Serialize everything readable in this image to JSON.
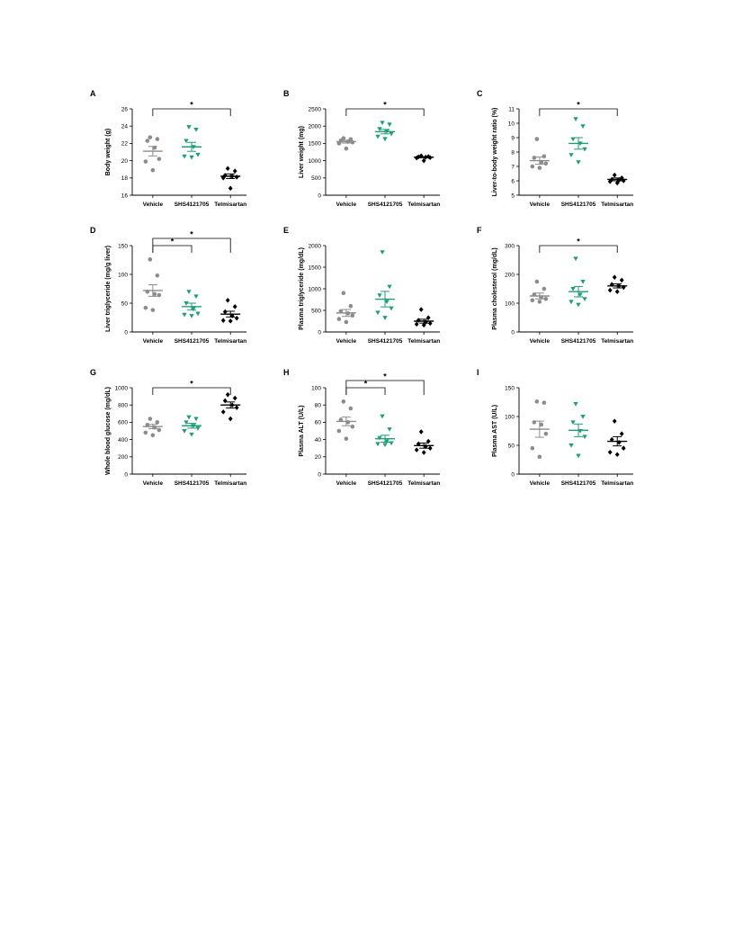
{
  "colors": {
    "Vehicle": "#8c8c8c",
    "SHS4121705": "#1f9e74",
    "Telmisartan": "#000000"
  },
  "chart_data": [
    {
      "panel": "A",
      "type": "scatter",
      "ylabel": "Body weight (g)",
      "ylim": [
        16,
        26
      ],
      "yticks": [
        16,
        18,
        20,
        22,
        24,
        26
      ],
      "categories": [
        "Vehicle",
        "SHS4121705",
        "Telmisartan"
      ],
      "series": [
        {
          "name": "Vehicle",
          "marker": "circle",
          "values": [
            22.7,
            22.5,
            22.3,
            21.5,
            20.2,
            19.9,
            18.9
          ],
          "mean": 21.1,
          "sem": 0.55
        },
        {
          "name": "SHS4121705",
          "marker": "triangle-down",
          "values": [
            23.9,
            23.6,
            22.3,
            21.6,
            20.7,
            20.5,
            20.4
          ],
          "mean": 21.6,
          "sem": 0.52
        },
        {
          "name": "Telmisartan",
          "marker": "diamond",
          "values": [
            19.1,
            18.8,
            18.3,
            18.2,
            18.1,
            18.0,
            16.8
          ],
          "mean": 18.2,
          "sem": 0.27
        }
      ],
      "sig": [
        {
          "from": "Vehicle",
          "to": "Telmisartan",
          "label": "*"
        }
      ]
    },
    {
      "panel": "B",
      "type": "scatter",
      "ylabel": "Liver weight (mg)",
      "ylim": [
        0,
        2500
      ],
      "yticks": [
        0,
        500,
        1000,
        1500,
        2000,
        2500
      ],
      "categories": [
        "Vehicle",
        "SHS4121705",
        "Telmisartan"
      ],
      "series": [
        {
          "name": "Vehicle",
          "marker": "circle",
          "values": [
            1650,
            1620,
            1580,
            1550,
            1530,
            1500,
            1350
          ],
          "mean": 1550,
          "sem": 40
        },
        {
          "name": "SHS4121705",
          "marker": "triangle-down",
          "values": [
            2100,
            2050,
            1920,
            1850,
            1780,
            1700,
            1630
          ],
          "mean": 1840,
          "sem": 65
        },
        {
          "name": "Telmisartan",
          "marker": "diamond",
          "values": [
            1140,
            1120,
            1110,
            1100,
            1090,
            1080,
            1000
          ],
          "mean": 1100,
          "sem": 15
        }
      ],
      "sig": [
        {
          "from": "Vehicle",
          "to": "Telmisartan",
          "label": "*"
        }
      ]
    },
    {
      "panel": "C",
      "type": "scatter",
      "ylabel": "Liver-to-body weight ratio (%)",
      "ylim": [
        5,
        11
      ],
      "yticks": [
        5,
        6,
        7,
        8,
        9,
        10,
        11
      ],
      "categories": [
        "Vehicle",
        "SHS4121705",
        "Telmisartan"
      ],
      "series": [
        {
          "name": "Vehicle",
          "marker": "circle",
          "values": [
            8.9,
            7.7,
            7.6,
            7.3,
            7.2,
            7.0,
            6.9
          ],
          "mean": 7.4,
          "sem": 0.25
        },
        {
          "name": "SHS4121705",
          "marker": "triangle-down",
          "values": [
            10.3,
            9.8,
            8.9,
            8.6,
            8.2,
            7.8,
            7.3
          ],
          "mean": 8.6,
          "sem": 0.4
        },
        {
          "name": "Telmisartan",
          "marker": "diamond",
          "values": [
            6.4,
            6.2,
            6.1,
            6.05,
            6.0,
            5.95,
            5.85
          ],
          "mean": 6.1,
          "sem": 0.1
        }
      ],
      "sig": [
        {
          "from": "Vehicle",
          "to": "Telmisartan",
          "label": "*"
        }
      ]
    },
    {
      "panel": "D",
      "type": "scatter",
      "ylabel": "Liver triglyceride (mg/g liver)",
      "ylim": [
        0,
        150
      ],
      "yticks": [
        0,
        50,
        100,
        150
      ],
      "categories": [
        "Vehicle",
        "SHS4121705",
        "Telmisartan"
      ],
      "series": [
        {
          "name": "Vehicle",
          "marker": "circle",
          "values": [
            126,
            98,
            70,
            66,
            64,
            42,
            38
          ],
          "mean": 72,
          "sem": 10
        },
        {
          "name": "SHS4121705",
          "marker": "triangle-down",
          "values": [
            70,
            62,
            50,
            40,
            32,
            30,
            28
          ],
          "mean": 44,
          "sem": 6
        },
        {
          "name": "Telmisartan",
          "marker": "diamond",
          "values": [
            55,
            44,
            35,
            28,
            24,
            20,
            19
          ],
          "mean": 31,
          "sem": 5
        }
      ],
      "sig": [
        {
          "from": "Vehicle",
          "to": "SHS4121705",
          "label": "*"
        },
        {
          "from": "Vehicle",
          "to": "Telmisartan",
          "label": "*"
        }
      ]
    },
    {
      "panel": "E",
      "type": "scatter",
      "ylabel": "Plasma triglyceride (mg/dL)",
      "ylim": [
        0,
        2000
      ],
      "yticks": [
        0,
        500,
        1000,
        1500,
        2000
      ],
      "categories": [
        "Vehicle",
        "SHS4121705",
        "Telmisartan"
      ],
      "series": [
        {
          "name": "Vehicle",
          "marker": "circle",
          "values": [
            900,
            600,
            480,
            430,
            380,
            300,
            230
          ],
          "mean": 440,
          "sem": 80
        },
        {
          "name": "SHS4121705",
          "marker": "triangle-down",
          "values": [
            1850,
            1050,
            850,
            700,
            550,
            450,
            330
          ],
          "mean": 760,
          "sem": 180
        },
        {
          "name": "Telmisartan",
          "marker": "diamond",
          "values": [
            520,
            330,
            270,
            230,
            200,
            180,
            160
          ],
          "mean": 250,
          "sem": 45
        }
      ],
      "sig": []
    },
    {
      "panel": "F",
      "type": "scatter",
      "ylabel": "Plasma cholesterol (mg/dL)",
      "ylim": [
        0,
        300
      ],
      "yticks": [
        0,
        100,
        200,
        300
      ],
      "categories": [
        "Vehicle",
        "SHS4121705",
        "Telmisartan"
      ],
      "series": [
        {
          "name": "Vehicle",
          "marker": "circle",
          "values": [
            175,
            150,
            130,
            120,
            115,
            110,
            105
          ],
          "mean": 125,
          "sem": 10
        },
        {
          "name": "SHS4121705",
          "marker": "triangle-down",
          "values": [
            255,
            175,
            150,
            130,
            115,
            105,
            95
          ],
          "mean": 140,
          "sem": 18
        },
        {
          "name": "Telmisartan",
          "marker": "diamond",
          "values": [
            190,
            180,
            165,
            160,
            155,
            145,
            140
          ],
          "mean": 160,
          "sem": 7
        }
      ],
      "sig": [
        {
          "from": "Vehicle",
          "to": "Telmisartan",
          "label": "*"
        }
      ]
    },
    {
      "panel": "G",
      "type": "scatter",
      "ylabel": "Whole blood glucose (mg/dL)",
      "ylim": [
        0,
        1000
      ],
      "yticks": [
        0,
        200,
        400,
        600,
        800,
        1000
      ],
      "categories": [
        "Vehicle",
        "SHS4121705",
        "Telmisartan"
      ],
      "series": [
        {
          "name": "Vehicle",
          "marker": "circle",
          "values": [
            640,
            600,
            570,
            540,
            510,
            480,
            450
          ],
          "mean": 550,
          "sem": 25
        },
        {
          "name": "SHS4121705",
          "marker": "triangle-down",
          "values": [
            660,
            640,
            600,
            560,
            530,
            500,
            460
          ],
          "mean": 560,
          "sem": 28
        },
        {
          "name": "Telmisartan",
          "marker": "diamond",
          "values": [
            920,
            880,
            850,
            800,
            770,
            720,
            640
          ],
          "mean": 800,
          "sem": 35
        }
      ],
      "sig": [
        {
          "from": "Vehicle",
          "to": "Telmisartan",
          "label": "*"
        }
      ]
    },
    {
      "panel": "H",
      "type": "scatter",
      "ylabel": "Plasma ALT (U/L)",
      "ylim": [
        0,
        100
      ],
      "yticks": [
        0,
        20,
        40,
        60,
        80,
        100
      ],
      "categories": [
        "Vehicle",
        "SHS4121705",
        "Telmisartan"
      ],
      "series": [
        {
          "name": "Vehicle",
          "marker": "circle",
          "values": [
            84,
            76,
            63,
            60,
            55,
            50,
            41
          ],
          "mean": 61,
          "sem": 5
        },
        {
          "name": "SHS4121705",
          "marker": "triangle-down",
          "values": [
            67,
            52,
            42,
            38,
            36,
            35,
            34
          ],
          "mean": 41,
          "sem": 4
        },
        {
          "name": "Telmisartan",
          "marker": "diamond",
          "values": [
            49,
            38,
            35,
            32,
            30,
            28,
            25
          ],
          "mean": 33,
          "sem": 3
        }
      ],
      "sig": [
        {
          "from": "Vehicle",
          "to": "SHS4121705",
          "label": "*"
        },
        {
          "from": "Vehicle",
          "to": "Telmisartan",
          "label": "*"
        }
      ]
    },
    {
      "panel": "I",
      "type": "scatter",
      "ylabel": "Plasma AST (U/L)",
      "ylim": [
        0,
        150
      ],
      "yticks": [
        0,
        50,
        100,
        150
      ],
      "categories": [
        "Vehicle",
        "SHS4121705",
        "Telmisartan"
      ],
      "series": [
        {
          "name": "Vehicle",
          "marker": "circle",
          "values": [
            126,
            124,
            90,
            86,
            70,
            45,
            30
          ],
          "mean": 78,
          "sem": 14
        },
        {
          "name": "SHS4121705",
          "marker": "triangle-down",
          "values": [
            122,
            100,
            90,
            75,
            65,
            50,
            32
          ],
          "mean": 76,
          "sem": 11
        },
        {
          "name": "Telmisartan",
          "marker": "diamond",
          "values": [
            92,
            70,
            60,
            55,
            45,
            38,
            34
          ],
          "mean": 57,
          "sem": 8
        }
      ],
      "sig": []
    }
  ]
}
